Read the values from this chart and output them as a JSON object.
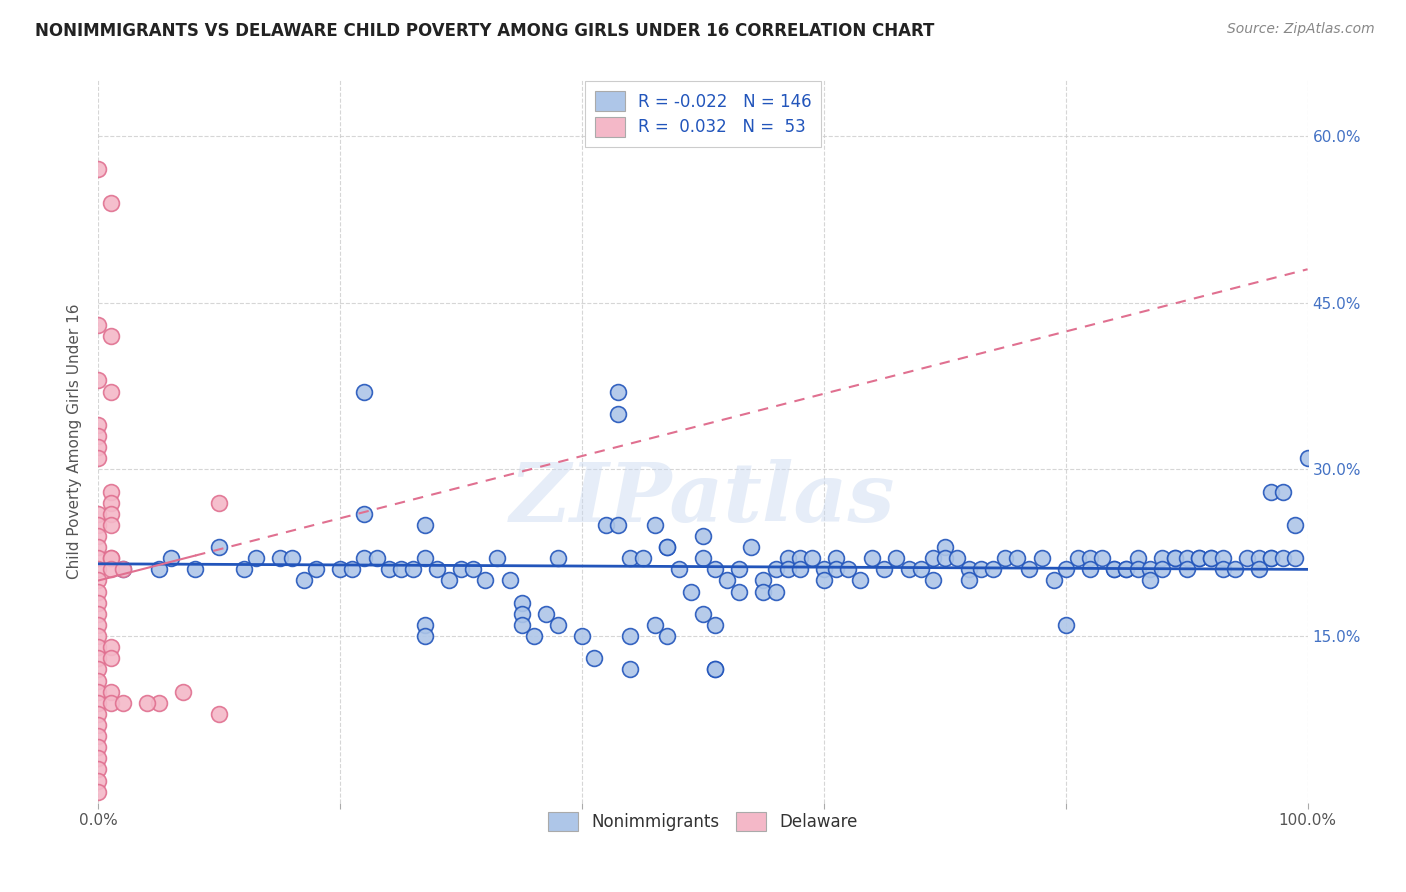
{
  "title": "NONIMMIGRANTS VS DELAWARE CHILD POVERTY AMONG GIRLS UNDER 16 CORRELATION CHART",
  "source": "Source: ZipAtlas.com",
  "ylabel": "Child Poverty Among Girls Under 16",
  "xlim": [
    0,
    1
  ],
  "ylim": [
    0,
    0.65
  ],
  "xticks": [
    0.0,
    0.2,
    0.4,
    0.6,
    0.8,
    1.0
  ],
  "xticklabels": [
    "0.0%",
    "",
    "",
    "",
    "",
    "100.0%"
  ],
  "yticks": [
    0.15,
    0.3,
    0.45,
    0.6
  ],
  "yticklabels_right": [
    "15.0%",
    "30.0%",
    "45.0%",
    "60.0%"
  ],
  "legend_labels": [
    "Nonimmigrants",
    "Delaware"
  ],
  "blue_R": "-0.022",
  "blue_N": "146",
  "pink_R": "0.032",
  "pink_N": "53",
  "watermark": "ZIPatlas",
  "blue_color": "#aec6e8",
  "pink_color": "#f4b8c8",
  "blue_line_color": "#2255bb",
  "pink_line_color": "#e07090",
  "right_tick_color": "#4472c4",
  "blue_scatter": [
    [
      0.22,
      0.37
    ],
    [
      0.43,
      0.37
    ],
    [
      0.43,
      0.35
    ],
    [
      0.22,
      0.26
    ],
    [
      0.27,
      0.25
    ],
    [
      0.02,
      0.21
    ],
    [
      0.05,
      0.21
    ],
    [
      0.06,
      0.22
    ],
    [
      0.08,
      0.21
    ],
    [
      0.1,
      0.23
    ],
    [
      0.12,
      0.21
    ],
    [
      0.13,
      0.22
    ],
    [
      0.15,
      0.22
    ],
    [
      0.16,
      0.22
    ],
    [
      0.17,
      0.2
    ],
    [
      0.18,
      0.21
    ],
    [
      0.2,
      0.21
    ],
    [
      0.21,
      0.21
    ],
    [
      0.22,
      0.22
    ],
    [
      0.23,
      0.22
    ],
    [
      0.24,
      0.21
    ],
    [
      0.25,
      0.21
    ],
    [
      0.26,
      0.21
    ],
    [
      0.27,
      0.22
    ],
    [
      0.28,
      0.21
    ],
    [
      0.29,
      0.2
    ],
    [
      0.3,
      0.21
    ],
    [
      0.31,
      0.21
    ],
    [
      0.32,
      0.2
    ],
    [
      0.33,
      0.22
    ],
    [
      0.27,
      0.16
    ],
    [
      0.27,
      0.15
    ],
    [
      0.34,
      0.2
    ],
    [
      0.35,
      0.18
    ],
    [
      0.35,
      0.17
    ],
    [
      0.35,
      0.16
    ],
    [
      0.36,
      0.15
    ],
    [
      0.37,
      0.17
    ],
    [
      0.38,
      0.22
    ],
    [
      0.38,
      0.16
    ],
    [
      0.4,
      0.15
    ],
    [
      0.41,
      0.13
    ],
    [
      0.42,
      0.25
    ],
    [
      0.43,
      0.25
    ],
    [
      0.44,
      0.22
    ],
    [
      0.44,
      0.15
    ],
    [
      0.44,
      0.12
    ],
    [
      0.45,
      0.22
    ],
    [
      0.46,
      0.25
    ],
    [
      0.46,
      0.16
    ],
    [
      0.47,
      0.23
    ],
    [
      0.47,
      0.15
    ],
    [
      0.47,
      0.23
    ],
    [
      0.48,
      0.21
    ],
    [
      0.49,
      0.19
    ],
    [
      0.5,
      0.24
    ],
    [
      0.5,
      0.22
    ],
    [
      0.5,
      0.17
    ],
    [
      0.51,
      0.21
    ],
    [
      0.51,
      0.16
    ],
    [
      0.51,
      0.12
    ],
    [
      0.51,
      0.12
    ],
    [
      0.52,
      0.2
    ],
    [
      0.53,
      0.21
    ],
    [
      0.53,
      0.19
    ],
    [
      0.54,
      0.23
    ],
    [
      0.55,
      0.2
    ],
    [
      0.55,
      0.19
    ],
    [
      0.56,
      0.21
    ],
    [
      0.56,
      0.19
    ],
    [
      0.57,
      0.22
    ],
    [
      0.57,
      0.21
    ],
    [
      0.58,
      0.22
    ],
    [
      0.58,
      0.21
    ],
    [
      0.59,
      0.22
    ],
    [
      0.6,
      0.21
    ],
    [
      0.6,
      0.2
    ],
    [
      0.61,
      0.22
    ],
    [
      0.61,
      0.21
    ],
    [
      0.62,
      0.21
    ],
    [
      0.63,
      0.2
    ],
    [
      0.64,
      0.22
    ],
    [
      0.65,
      0.21
    ],
    [
      0.66,
      0.22
    ],
    [
      0.67,
      0.21
    ],
    [
      0.68,
      0.21
    ],
    [
      0.69,
      0.2
    ],
    [
      0.69,
      0.22
    ],
    [
      0.7,
      0.23
    ],
    [
      0.7,
      0.22
    ],
    [
      0.71,
      0.22
    ],
    [
      0.72,
      0.21
    ],
    [
      0.72,
      0.2
    ],
    [
      0.73,
      0.21
    ],
    [
      0.74,
      0.21
    ],
    [
      0.75,
      0.22
    ],
    [
      0.76,
      0.22
    ],
    [
      0.77,
      0.21
    ],
    [
      0.78,
      0.22
    ],
    [
      0.79,
      0.2
    ],
    [
      0.8,
      0.21
    ],
    [
      0.8,
      0.16
    ],
    [
      0.81,
      0.22
    ],
    [
      0.82,
      0.22
    ],
    [
      0.82,
      0.21
    ],
    [
      0.83,
      0.22
    ],
    [
      0.84,
      0.21
    ],
    [
      0.84,
      0.21
    ],
    [
      0.85,
      0.21
    ],
    [
      0.85,
      0.21
    ],
    [
      0.86,
      0.22
    ],
    [
      0.86,
      0.21
    ],
    [
      0.87,
      0.21
    ],
    [
      0.87,
      0.2
    ],
    [
      0.88,
      0.22
    ],
    [
      0.88,
      0.21
    ],
    [
      0.89,
      0.22
    ],
    [
      0.89,
      0.22
    ],
    [
      0.9,
      0.22
    ],
    [
      0.9,
      0.21
    ],
    [
      0.91,
      0.22
    ],
    [
      0.91,
      0.22
    ],
    [
      0.92,
      0.22
    ],
    [
      0.92,
      0.22
    ],
    [
      0.93,
      0.22
    ],
    [
      0.93,
      0.21
    ],
    [
      0.94,
      0.21
    ],
    [
      0.95,
      0.22
    ],
    [
      0.96,
      0.22
    ],
    [
      0.96,
      0.21
    ],
    [
      0.97,
      0.22
    ],
    [
      0.97,
      0.22
    ],
    [
      0.97,
      0.28
    ],
    [
      0.98,
      0.22
    ],
    [
      0.98,
      0.28
    ],
    [
      0.99,
      0.22
    ],
    [
      0.99,
      0.25
    ],
    [
      1.0,
      0.31
    ]
  ],
  "pink_scatter": [
    [
      0.0,
      0.57
    ],
    [
      0.01,
      0.54
    ],
    [
      0.0,
      0.43
    ],
    [
      0.01,
      0.42
    ],
    [
      0.0,
      0.38
    ],
    [
      0.01,
      0.37
    ],
    [
      0.0,
      0.34
    ],
    [
      0.0,
      0.33
    ],
    [
      0.0,
      0.32
    ],
    [
      0.0,
      0.31
    ],
    [
      0.01,
      0.28
    ],
    [
      0.01,
      0.27
    ],
    [
      0.0,
      0.26
    ],
    [
      0.01,
      0.26
    ],
    [
      0.0,
      0.25
    ],
    [
      0.01,
      0.25
    ],
    [
      0.0,
      0.24
    ],
    [
      0.0,
      0.23
    ],
    [
      0.0,
      0.22
    ],
    [
      0.01,
      0.22
    ],
    [
      0.01,
      0.22
    ],
    [
      0.0,
      0.21
    ],
    [
      0.01,
      0.21
    ],
    [
      0.02,
      0.21
    ],
    [
      0.0,
      0.2
    ],
    [
      0.0,
      0.19
    ],
    [
      0.0,
      0.18
    ],
    [
      0.0,
      0.17
    ],
    [
      0.0,
      0.16
    ],
    [
      0.0,
      0.15
    ],
    [
      0.0,
      0.14
    ],
    [
      0.01,
      0.14
    ],
    [
      0.0,
      0.13
    ],
    [
      0.01,
      0.13
    ],
    [
      0.0,
      0.12
    ],
    [
      0.0,
      0.11
    ],
    [
      0.0,
      0.1
    ],
    [
      0.01,
      0.1
    ],
    [
      0.0,
      0.09
    ],
    [
      0.01,
      0.09
    ],
    [
      0.02,
      0.09
    ],
    [
      0.0,
      0.08
    ],
    [
      0.0,
      0.07
    ],
    [
      0.0,
      0.06
    ],
    [
      0.0,
      0.05
    ],
    [
      0.0,
      0.04
    ],
    [
      0.0,
      0.03
    ],
    [
      0.0,
      0.02
    ],
    [
      0.0,
      0.01
    ],
    [
      0.05,
      0.09
    ],
    [
      0.1,
      0.08
    ],
    [
      0.1,
      0.27
    ],
    [
      0.07,
      0.1
    ],
    [
      0.04,
      0.09
    ]
  ],
  "blue_trend_y0": 0.215,
  "blue_trend_y1": 0.21,
  "pink_trend_x0": 0.0,
  "pink_trend_y0": 0.2,
  "pink_trend_x1": 1.0,
  "pink_trend_y1": 0.48
}
